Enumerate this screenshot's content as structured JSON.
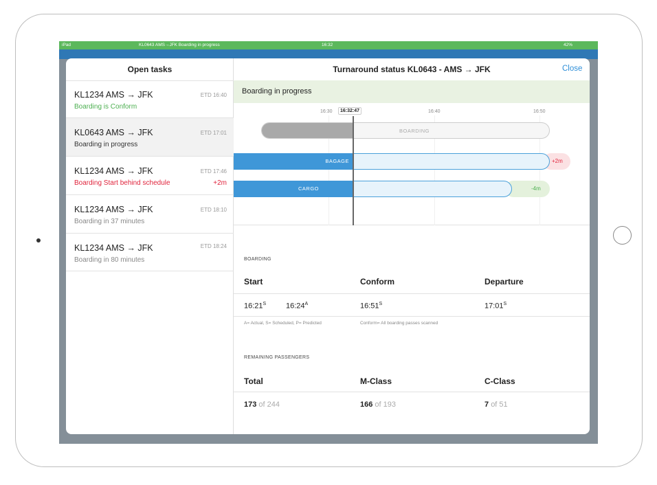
{
  "status_bar": {
    "device": "iPad",
    "title": "KL0643 AMS→JFK Boarding in progress",
    "time": "16:32",
    "battery": "42%"
  },
  "sidebar": {
    "title": "Open tasks",
    "tasks": [
      {
        "flight": "KL1234 AMS → JFK",
        "etd": "ETD 16:40",
        "status": "Boarding is Conform"
      },
      {
        "flight": "KL0643 AMS → JFK",
        "etd": "ETD 17:01",
        "status": "Boarding in progress"
      },
      {
        "flight": "KL1234 AMS → JFK",
        "etd": "ETD 17:46",
        "status": "Boarding Start behind schedule",
        "delay": "+2m"
      },
      {
        "flight": "KL1234 AMS → JFK",
        "etd": "ETD 18:10",
        "status": "Boarding in 37 minutes"
      },
      {
        "flight": "KL1234 AMS → JFK",
        "etd": "ETD 18:24",
        "status": "Boarding in 80 minutes"
      }
    ]
  },
  "detail": {
    "title": "Turnaround status KL0643 - AMS → JFK",
    "close": "Close",
    "banner": "Boarding in progress",
    "timeline": {
      "ticks": [
        "16:30",
        "16:32:47",
        "16:40",
        "16:50"
      ],
      "bars": [
        {
          "label": "BOARDING"
        },
        {
          "label": "BAGAGE",
          "offset": "+2m"
        },
        {
          "label": "CARGO",
          "offset": "-4m"
        }
      ]
    },
    "boarding": {
      "title": "BOARDING",
      "headers": [
        "Start",
        "Conform",
        "Departure"
      ],
      "start": [
        {
          "time": "16:21",
          "sup": "S"
        },
        {
          "time": "16:24",
          "sup": "A"
        }
      ],
      "conform": {
        "time": "16:51",
        "sup": "S"
      },
      "departure": {
        "time": "17:01",
        "sup": "S"
      },
      "notes": [
        "A= Actual, S= Scheduled, P= Predicted",
        "Conform= All boarding passes scanned"
      ]
    },
    "passengers": {
      "title": "REMAINING PASSENGERS",
      "headers": [
        "Total",
        "M-Class",
        "C-Class"
      ],
      "values": [
        {
          "count": "173",
          "of": "of 244"
        },
        {
          "count": "166",
          "of": "of 193"
        },
        {
          "count": "7",
          "of": "of 51"
        }
      ]
    }
  }
}
